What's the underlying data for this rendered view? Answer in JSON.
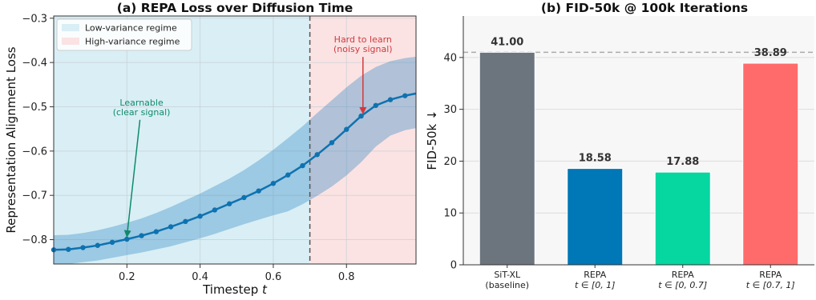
{
  "chart_data": [
    {
      "type": "line",
      "title": "(a) REPA Loss over Diffusion Time",
      "xlabel": "Timestep",
      "xlabel_var": "t",
      "ylabel": "Representation Alignment Loss",
      "xlim": [
        0,
        0.99
      ],
      "ylim": [
        -0.855,
        -0.295
      ],
      "xticks": [
        0.2,
        0.4,
        0.6,
        0.8
      ],
      "xtick_labels": [
        "0.2",
        "0.4",
        "0.6",
        "0.8"
      ],
      "yticks": [
        -0.8,
        -0.7,
        -0.6,
        -0.5,
        -0.4,
        -0.3
      ],
      "ytick_labels": [
        "−0.8",
        "−0.7",
        "−0.6",
        "−0.5",
        "−0.4",
        "−0.3"
      ],
      "grid": true,
      "legend_position": "top-left",
      "legend": [
        {
          "label": "Low-variance regime",
          "color": "#d9eff5"
        },
        {
          "label": "High-variance regime",
          "color": "#fbe3e3"
        }
      ],
      "regions": [
        {
          "x0": 0,
          "x1": 0.7,
          "color": "#d9eff5"
        },
        {
          "x0": 0.7,
          "x1": 0.99,
          "color": "#fbe3e3"
        }
      ],
      "vline": {
        "x": 0.7,
        "color": "#555555"
      },
      "line_color": "#0e72b0",
      "band_color": "#3a8cc4",
      "x": [
        0.0,
        0.04,
        0.08,
        0.12,
        0.16,
        0.2,
        0.24,
        0.28,
        0.32,
        0.36,
        0.4,
        0.44,
        0.48,
        0.52,
        0.56,
        0.6,
        0.64,
        0.68,
        0.72,
        0.76,
        0.8,
        0.84,
        0.88,
        0.92,
        0.96,
        0.99
      ],
      "y": [
        -0.823,
        -0.822,
        -0.818,
        -0.813,
        -0.806,
        -0.799,
        -0.791,
        -0.782,
        -0.771,
        -0.759,
        -0.747,
        -0.733,
        -0.719,
        -0.705,
        -0.69,
        -0.673,
        -0.654,
        -0.633,
        -0.608,
        -0.581,
        -0.551,
        -0.521,
        -0.497,
        -0.484,
        -0.475,
        -0.47
      ],
      "band_upper": [
        -0.79,
        -0.789,
        -0.785,
        -0.779,
        -0.771,
        -0.762,
        -0.752,
        -0.74,
        -0.726,
        -0.711,
        -0.696,
        -0.679,
        -0.662,
        -0.643,
        -0.621,
        -0.597,
        -0.571,
        -0.544,
        -0.514,
        -0.485,
        -0.456,
        -0.43,
        -0.41,
        -0.397,
        -0.39,
        -0.387
      ],
      "band_lower": [
        -0.855,
        -0.855,
        -0.851,
        -0.847,
        -0.841,
        -0.835,
        -0.829,
        -0.822,
        -0.815,
        -0.806,
        -0.797,
        -0.787,
        -0.776,
        -0.765,
        -0.755,
        -0.745,
        -0.736,
        -0.72,
        -0.701,
        -0.68,
        -0.655,
        -0.625,
        -0.59,
        -0.565,
        -0.553,
        -0.548
      ],
      "annotations": [
        {
          "lines": [
            "Learnable",
            "(clear signal)"
          ],
          "color": "#0f8a6a",
          "text_at": [
            0.24,
            -0.497
          ],
          "arrow_to": [
            0.2,
            -0.799
          ]
        },
        {
          "lines": [
            "Hard to learn",
            "(noisy signal)"
          ],
          "color": "#d1393f",
          "text_at": [
            0.845,
            -0.355
          ],
          "arrow_to": [
            0.845,
            -0.521
          ]
        }
      ]
    },
    {
      "type": "bar",
      "title": "(b) FID-50k @ 100k Iterations",
      "ylabel": "FID-50k ↓",
      "ylim": [
        0,
        48
      ],
      "yticks": [
        0,
        10,
        20,
        30,
        40
      ],
      "ytick_labels": [
        "0",
        "10",
        "20",
        "30",
        "40"
      ],
      "categories": [
        {
          "line1": "SiT-XL",
          "line2": "(baseline)"
        },
        {
          "line1": "REPA",
          "line2": "t ∈ [0, 1]"
        },
        {
          "line1": "REPA",
          "line2": "t ∈ [0, 0.7]"
        },
        {
          "line1": "REPA",
          "line2": "t ∈ [0.7, 1]"
        }
      ],
      "values": [
        41.0,
        18.58,
        17.88,
        38.89
      ],
      "value_labels": [
        "41.00",
        "18.58",
        "17.88",
        "38.89"
      ],
      "colors": [
        "#6c757d",
        "#0077b6",
        "#06d6a0",
        "#ff6b6b"
      ],
      "baseline_line": 41.0,
      "grid": true,
      "background": "#f7f7f7"
    }
  ]
}
